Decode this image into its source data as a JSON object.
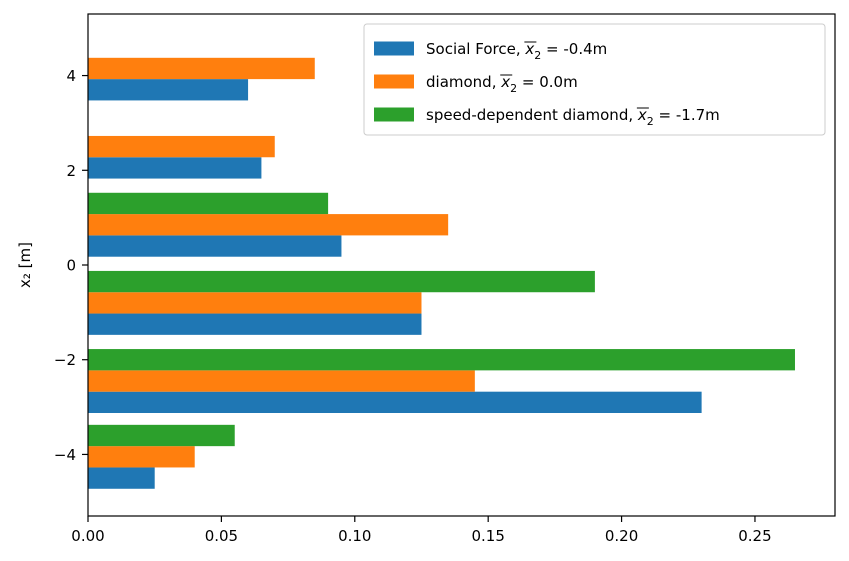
{
  "chart_data": {
    "type": "bar",
    "orientation": "horizontal",
    "title": "",
    "xlabel": "",
    "ylabel": "x₂ [m]",
    "xlim": [
      0,
      0.28
    ],
    "ylim": [
      -5.3,
      5.3
    ],
    "xticks": [
      0.0,
      0.05,
      0.1,
      0.15,
      0.2,
      0.25
    ],
    "xtick_labels": [
      "0.00",
      "0.05",
      "0.10",
      "0.15",
      "0.20",
      "0.25"
    ],
    "yticks": [
      -4,
      -2,
      0,
      2,
      4
    ],
    "ytick_labels": [
      "−4",
      "−2",
      "0",
      "2",
      "4"
    ],
    "legend_position": "top-right",
    "series": [
      {
        "name": "Social Force",
        "mean_label": "-0.4m",
        "color": "#1f77b4",
        "points": [
          {
            "y": -4.5,
            "value": 0.025
          },
          {
            "y": -2.9,
            "value": 0.23
          },
          {
            "y": -1.25,
            "value": 0.125
          },
          {
            "y": 0.4,
            "value": 0.095
          },
          {
            "y": 2.05,
            "value": 0.065
          },
          {
            "y": 3.7,
            "value": 0.06
          }
        ]
      },
      {
        "name": "diamond",
        "mean_label": "0.0m",
        "color": "#ff7f0e",
        "points": [
          {
            "y": -4.05,
            "value": 0.04
          },
          {
            "y": -2.45,
            "value": 0.145
          },
          {
            "y": -0.8,
            "value": 0.125
          },
          {
            "y": 0.85,
            "value": 0.135
          },
          {
            "y": 2.5,
            "value": 0.07
          },
          {
            "y": 4.15,
            "value": 0.085
          }
        ]
      },
      {
        "name": "speed-dependent diamond",
        "mean_label": "-1.7m",
        "color": "#2ca02c",
        "points": [
          {
            "y": -3.6,
            "value": 0.055
          },
          {
            "y": -2.0,
            "value": 0.265
          },
          {
            "y": -0.35,
            "value": 0.19
          },
          {
            "y": 1.3,
            "value": 0.09
          }
        ]
      }
    ]
  }
}
